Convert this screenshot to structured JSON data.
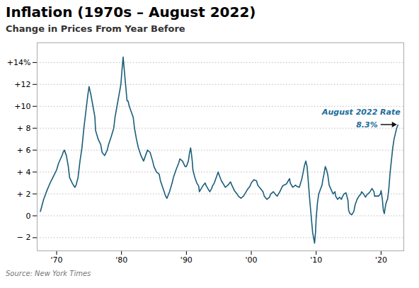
{
  "chart_data": {
    "type": "line",
    "title": "Inflation (1970s – August 2022)",
    "subtitle": "Change in Prices From Year Before",
    "caption": "Source: New York Times",
    "annotations": [
      {
        "text": "August 2022 Rate",
        "color": "#1a6b9a"
      },
      {
        "text": "8.3%",
        "color": "#1a6b9a"
      }
    ],
    "color": "#1a5e7a",
    "grid": true,
    "xlim": [
      1967.0,
      2023.5
    ],
    "xticks": [
      {
        "value": 1970,
        "label": "'70"
      },
      {
        "value": 1980,
        "label": "'80"
      },
      {
        "value": 1990,
        "label": "'90"
      },
      {
        "value": 2000,
        "label": "'00"
      },
      {
        "value": 2010,
        "label": "'10"
      },
      {
        "value": 2020,
        "label": "'20"
      }
    ],
    "ylim": [
      -3.2,
      15.8
    ],
    "yticks": [
      {
        "value": -2,
        "label": "− 2"
      },
      0,
      {
        "value": 2,
        "label": "+ 2"
      },
      {
        "value": 4,
        "label": "+ 4"
      },
      {
        "value": 6,
        "label": "+ 6"
      },
      {
        "value": 8,
        "label": "+ 8"
      },
      {
        "value": 10,
        "label": "+10"
      },
      {
        "value": 12,
        "label": "+12"
      },
      {
        "value": 14,
        "label": "+14%"
      }
    ],
    "x": [
      1967.5,
      1968.0,
      1968.5,
      1969.0,
      1969.5,
      1970.0,
      1970.3,
      1970.6,
      1970.9,
      1971.0,
      1971.2,
      1971.5,
      1971.8,
      1972.0,
      1972.4,
      1972.8,
      1973.0,
      1973.3,
      1973.6,
      1973.9,
      1974.2,
      1974.5,
      1974.8,
      1975.0,
      1975.3,
      1975.6,
      1975.9,
      1976.0,
      1976.4,
      1976.8,
      1977.0,
      1977.4,
      1977.8,
      1978.0,
      1978.4,
      1978.8,
      1979.0,
      1979.3,
      1979.6,
      1979.9,
      1980.1,
      1980.25,
      1980.4,
      1980.55,
      1980.7,
      1980.85,
      1981.0,
      1981.2,
      1981.5,
      1981.8,
      1982.0,
      1982.3,
      1982.6,
      1983.0,
      1983.4,
      1983.7,
      1984.0,
      1984.4,
      1984.8,
      1985.0,
      1985.4,
      1985.8,
      1986.0,
      1986.4,
      1986.8,
      1987.0,
      1987.4,
      1987.8,
      1988.0,
      1988.4,
      1988.8,
      1989.0,
      1989.4,
      1989.8,
      1990.0,
      1990.3,
      1990.5,
      1990.65,
      1990.75,
      1990.9,
      1991.0,
      1991.3,
      1991.6,
      1991.9,
      1992.0,
      1992.3,
      1992.6,
      1992.9,
      1993.0,
      1993.3,
      1993.6,
      1993.9,
      1994.0,
      1994.3,
      1994.6,
      1994.9,
      1995.0,
      1995.4,
      1995.8,
      1996.0,
      1996.4,
      1996.8,
      1997.0,
      1997.4,
      1997.8,
      1998.0,
      1998.4,
      1998.8,
      1999.0,
      1999.4,
      1999.8,
      2000.0,
      2000.4,
      2000.8,
      2001.0,
      2001.4,
      2001.8,
      2002.0,
      2002.4,
      2002.8,
      2003.0,
      2003.4,
      2003.8,
      2004.0,
      2004.4,
      2004.8,
      2005.0,
      2005.4,
      2005.7,
      2005.9,
      2006.0,
      2006.4,
      2006.8,
      2007.0,
      2007.4,
      2007.8,
      2008.0,
      2008.2,
      2008.4,
      2008.6,
      2008.8,
      2009.0,
      2009.15,
      2009.3,
      2009.45,
      2009.6,
      2009.75,
      2009.9,
      2010.0,
      2010.2,
      2010.4,
      2010.7,
      2010.9,
      2011.0,
      2011.2,
      2011.4,
      2011.6,
      2011.8,
      2012.0,
      2012.3,
      2012.6,
      2012.9,
      2013.0,
      2013.3,
      2013.6,
      2013.9,
      2014.0,
      2014.3,
      2014.6,
      2014.9,
      2015.0,
      2015.2,
      2015.5,
      2015.8,
      2016.0,
      2016.3,
      2016.6,
      2016.9,
      2017.0,
      2017.3,
      2017.6,
      2017.9,
      2018.0,
      2018.3,
      2018.6,
      2018.9,
      2019.0,
      2019.3,
      2019.6,
      2019.9,
      2020.0,
      2020.2,
      2020.35,
      2020.5,
      2020.7,
      2020.9,
      2021.0,
      2021.2,
      2021.4,
      2021.6,
      2021.8,
      2022.0,
      2022.2,
      2022.4,
      2022.6
    ],
    "values": [
      0.4,
      1.5,
      2.3,
      3.0,
      3.6,
      4.2,
      4.8,
      5.2,
      5.6,
      5.8,
      6.0,
      5.5,
      4.5,
      3.5,
      3.0,
      2.6,
      2.8,
      3.5,
      5.0,
      6.2,
      8.0,
      9.5,
      11.0,
      11.8,
      11.0,
      10.0,
      9.0,
      7.8,
      7.0,
      6.5,
      5.8,
      5.5,
      6.0,
      6.5,
      7.2,
      8.0,
      9.0,
      10.0,
      11.0,
      12.0,
      13.5,
      14.5,
      13.5,
      12.5,
      11.5,
      10.5,
      10.5,
      10.0,
      9.5,
      9.0,
      8.0,
      7.0,
      6.2,
      5.5,
      5.0,
      5.5,
      6.0,
      5.8,
      5.0,
      4.5,
      4.0,
      3.8,
      3.2,
      2.5,
      1.8,
      1.6,
      2.2,
      3.0,
      3.5,
      4.2,
      4.8,
      5.2,
      5.0,
      4.5,
      4.5,
      5.0,
      5.8,
      6.2,
      5.8,
      5.0,
      4.2,
      3.5,
      3.0,
      2.7,
      2.2,
      2.5,
      2.8,
      3.0,
      2.8,
      2.5,
      2.2,
      2.5,
      2.7,
      3.0,
      3.5,
      4.0,
      3.8,
      3.2,
      2.8,
      2.6,
      2.8,
      3.1,
      2.8,
      2.3,
      2.0,
      1.8,
      1.6,
      1.8,
      2.0,
      2.4,
      2.7,
      3.0,
      3.3,
      3.2,
      2.8,
      2.5,
      2.2,
      1.8,
      1.5,
      1.7,
      2.0,
      2.2,
      1.9,
      1.8,
      2.2,
      2.7,
      2.8,
      2.9,
      3.2,
      3.4,
      3.0,
      2.6,
      2.8,
      2.7,
      2.6,
      3.4,
      4.0,
      4.6,
      5.0,
      4.5,
      3.0,
      1.5,
      0.5,
      -0.5,
      -1.5,
      -2.0,
      -2.5,
      -1.5,
      -0.2,
      1.2,
      2.0,
      2.5,
      2.8,
      3.2,
      3.8,
      4.5,
      4.2,
      3.7,
      2.8,
      2.4,
      2.0,
      2.2,
      1.8,
      1.5,
      1.7,
      1.5,
      1.7,
      2.0,
      2.1,
      1.4,
      0.5,
      0.2,
      0.1,
      0.4,
      1.0,
      1.5,
      1.8,
      2.0,
      2.2,
      2.0,
      1.7,
      2.0,
      2.0,
      2.2,
      2.5,
      2.2,
      1.8,
      1.8,
      1.8,
      2.0,
      2.3,
      1.5,
      0.5,
      0.2,
      1.0,
      1.4,
      1.5,
      2.5,
      4.0,
      5.1,
      6.2,
      7.0,
      7.5,
      8.0,
      8.3
    ]
  }
}
